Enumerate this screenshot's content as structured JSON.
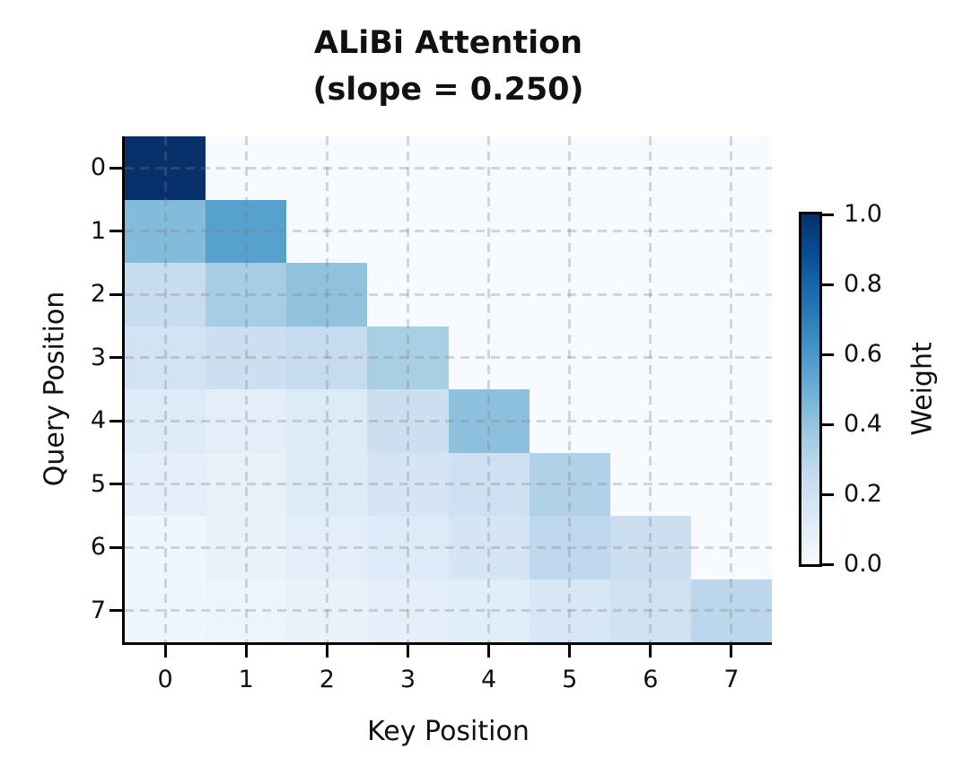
{
  "title": {
    "line1": "ALiBi Attention",
    "line2": "(slope = 0.250)"
  },
  "chart_data": {
    "type": "heatmap",
    "title": "ALiBi Attention (slope = 0.250)",
    "xlabel": "Key Position",
    "ylabel": "Query Position",
    "x_ticks": [
      "0",
      "1",
      "2",
      "3",
      "4",
      "5",
      "6",
      "7"
    ],
    "y_ticks": [
      "0",
      "1",
      "2",
      "3",
      "4",
      "5",
      "6",
      "7"
    ],
    "slope": 0.25,
    "masked_upper_triangle": true,
    "value_range": [
      0,
      1
    ],
    "weights": [
      [
        1.0,
        null,
        null,
        null,
        null,
        null,
        null,
        null
      ],
      [
        0.44,
        0.56,
        null,
        null,
        null,
        null,
        null,
        null
      ],
      [
        0.24,
        0.35,
        0.41,
        null,
        null,
        null,
        null,
        null
      ],
      [
        0.19,
        0.22,
        0.25,
        0.34,
        null,
        null,
        null,
        null
      ],
      [
        0.13,
        0.1,
        0.13,
        0.22,
        0.42,
        null,
        null,
        null
      ],
      [
        0.09,
        0.08,
        0.13,
        0.17,
        0.21,
        0.32,
        null,
        null
      ],
      [
        0.04,
        0.07,
        0.1,
        0.13,
        0.17,
        0.27,
        0.22,
        null
      ],
      [
        0.04,
        0.05,
        0.07,
        0.09,
        0.11,
        0.16,
        0.2,
        0.28
      ]
    ],
    "colorbar": {
      "label": "Weight",
      "tick_labels": [
        "1.0",
        "0.8",
        "0.6",
        "0.4",
        "0.2",
        "0.0"
      ],
      "tick_values": [
        1.0,
        0.8,
        0.6,
        0.4,
        0.2,
        0.0
      ],
      "min": 0.0,
      "max": 1.0
    },
    "legend": "none",
    "grid": "dashed"
  },
  "colors": {
    "colormap_name": "Blues",
    "colormap_stops": [
      "#f7fbff",
      "#deebf7",
      "#c6dbef",
      "#9ecae1",
      "#6baed6",
      "#4292c6",
      "#2171b5",
      "#08519c",
      "#08306b"
    ],
    "masked_cell": "#f7fbff",
    "grid_line": "#7d7d7d",
    "spine": "#000000",
    "text": "#111111",
    "background": "#ffffff"
  }
}
